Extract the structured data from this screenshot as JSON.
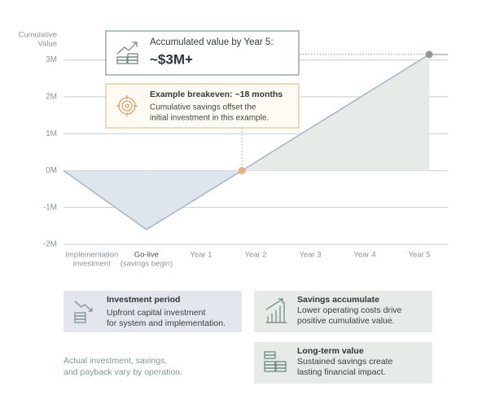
{
  "chart_data": {
    "type": "line",
    "y_title": [
      "Cumulative",
      "Value"
    ],
    "x": [
      -1.52,
      0,
      1.75,
      5.18,
      5.52
    ],
    "values": [
      0,
      -1.6,
      0,
      3.15,
      3.15
    ],
    "line_color": "#a9b8c6",
    "negative_fill": "#dfe5ec",
    "positive_fill": "#e7ebe8",
    "markers": [
      {
        "index": 2,
        "color": "#e8b27a"
      },
      {
        "index": 3,
        "color": "#8c9c92"
      }
    ],
    "xlim": [
      -1.52,
      5.52
    ],
    "xticks": [
      {
        "value": -1,
        "label": [
          "Implementation",
          "investment"
        ]
      },
      {
        "value": 0,
        "label": [
          "Go-live",
          "(savings begin)"
        ]
      },
      {
        "value": 1,
        "label": [
          "Year 1"
        ]
      },
      {
        "value": 2,
        "label": [
          "Year 2"
        ]
      },
      {
        "value": 3,
        "label": [
          "Year 3"
        ]
      },
      {
        "value": 4,
        "label": [
          "Year 4"
        ]
      },
      {
        "value": 5,
        "label": [
          "Year 5"
        ]
      }
    ],
    "ylim": [
      -2.2,
      3.3
    ],
    "yticks": [
      {
        "value": -2,
        "label": "-2M"
      },
      {
        "value": -1,
        "label": "-1M"
      },
      {
        "value": 0,
        "label": "0M"
      },
      {
        "value": 1,
        "label": "1M"
      },
      {
        "value": 2,
        "label": "2M"
      },
      {
        "value": 3,
        "label": "3M"
      }
    ],
    "grid": true
  },
  "callouts": {
    "total": {
      "title": "Accumulated value by Year 5:",
      "value": "~$3M+"
    },
    "breakeven": {
      "title": "Example breakeven: ~18 months",
      "lines": [
        "Cumulative savings offset the",
        "initial investment in this example."
      ]
    }
  },
  "cards": [
    {
      "title": "Investment period",
      "lines": [
        "Upfront capital investment",
        "for system and implementation."
      ]
    },
    {
      "title": "Savings accumulate",
      "lines": [
        "Lower operating costs drive",
        "positive cumulative value."
      ]
    },
    {
      "title": "Long-term value",
      "lines": [
        "Sustained savings create",
        "lasting financial impact."
      ]
    }
  ],
  "note": [
    "Actual investment, savings,",
    "and payback vary by operation."
  ]
}
